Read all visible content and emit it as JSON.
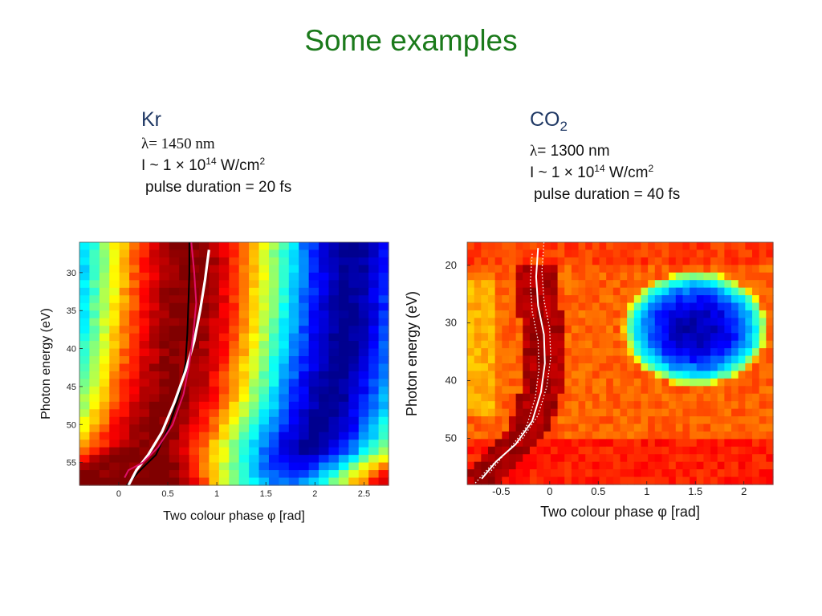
{
  "slide": {
    "title": "Some examples"
  },
  "kr": {
    "heading": "Kr",
    "lambda_symbol": "λ",
    "lambda_value": "= 1450 nm",
    "intensity_prefix": "I ~ 1 × 10",
    "intensity_exp": "14",
    "intensity_unit": " W/cm",
    "intensity_unit_exp": "2",
    "pulse": "pulse duration = 20 fs"
  },
  "co2": {
    "heading": "CO",
    "heading_sub": "2",
    "lambda_symbol": "λ",
    "lambda_value": "= 1300 nm",
    "intensity_prefix": "I ~ 1 × 10",
    "intensity_exp": "14",
    "intensity_unit": " W/cm",
    "intensity_unit_exp": "2",
    "pulse": "pulse duration = 40 fs"
  },
  "chart_data": [
    {
      "type": "heatmap",
      "xlabel": "Two colour phase φ [rad]",
      "ylabel": "Photon energy (eV)",
      "xlim": [
        -0.4,
        2.75
      ],
      "ylim": [
        26,
        58
      ],
      "y_inverted": true,
      "x_ticks": [
        0,
        0.5,
        1,
        1.5,
        2,
        2.5
      ],
      "x_tick_labels": [
        "0",
        "0.5",
        "1",
        "1.5",
        "2",
        "2.5"
      ],
      "y_ticks": [
        30,
        35,
        40,
        45,
        50,
        55
      ],
      "y_tick_labels": [
        "30",
        "35",
        "40",
        "45",
        "50",
        "55"
      ],
      "colormap": "jet",
      "colormap_colors": [
        "#00008f",
        "#0000ff",
        "#0080ff",
        "#00ffff",
        "#80ff80",
        "#ffff00",
        "#ff8000",
        "#ff0000",
        "#800000"
      ],
      "overlay_curves": [
        {
          "color": "#000000",
          "x": [
            0.72,
            0.72,
            0.71,
            0.7,
            0.68,
            0.62,
            0.52,
            0.38,
            0.22,
            0.08
          ],
          "y": [
            26,
            30,
            34,
            38,
            42,
            46,
            50,
            54,
            56,
            58
          ]
        },
        {
          "color": "#ffffff",
          "x": [
            0.92,
            0.88,
            0.83,
            0.77,
            0.68,
            0.57,
            0.44,
            0.3,
            0.18,
            0.1
          ],
          "y": [
            27,
            31,
            35,
            39,
            43,
            47,
            51,
            54,
            56,
            58
          ]
        },
        {
          "color": "#e0106a",
          "x": [
            0.74,
            0.77,
            0.79,
            0.76,
            0.72,
            0.66,
            0.55,
            0.4,
            0.25,
            0.1,
            0.06
          ],
          "y": [
            26,
            30,
            34,
            38,
            42,
            46,
            50,
            53,
            55,
            56,
            57
          ]
        }
      ]
    },
    {
      "type": "heatmap",
      "xlabel": "Two colour phase φ [rad]",
      "ylabel": "Photon energy (eV)",
      "xlim": [
        -0.85,
        2.3
      ],
      "ylim": [
        16,
        58
      ],
      "y_inverted": true,
      "x_ticks": [
        -0.5,
        0,
        0.5,
        1,
        1.5,
        2
      ],
      "x_tick_labels": [
        "-0.5",
        "0",
        "0.5",
        "1",
        "1.5",
        "2"
      ],
      "y_ticks": [
        20,
        30,
        40,
        50
      ],
      "y_tick_labels": [
        "20",
        "30",
        "40",
        "50"
      ],
      "colormap": "jet",
      "colormap_colors": [
        "#00008f",
        "#0000ff",
        "#0080ff",
        "#00ffff",
        "#80ff80",
        "#ffff00",
        "#ff8000",
        "#ff0000",
        "#800000"
      ],
      "overlay_curves": [
        {
          "color": "#ffffff",
          "style": "solid",
          "x": [
            -0.12,
            -0.14,
            -0.12,
            -0.06,
            -0.05,
            -0.09,
            -0.18,
            -0.35,
            -0.55,
            -0.7
          ],
          "y": [
            17,
            22,
            27,
            32,
            37,
            42,
            47,
            51,
            54,
            57
          ]
        },
        {
          "color": "#ffffff",
          "style": "dotted",
          "x": [
            -0.06,
            -0.08,
            -0.06,
            0.0,
            0.01,
            -0.03,
            -0.12,
            -0.28,
            -0.48,
            -0.62
          ],
          "y": [
            16,
            21,
            26,
            31,
            36,
            41,
            46,
            50,
            53,
            56
          ]
        },
        {
          "color": "#ffffff",
          "style": "dotted",
          "x": [
            -0.18,
            -0.2,
            -0.18,
            -0.12,
            -0.11,
            -0.15,
            -0.24,
            -0.42,
            -0.62,
            -0.78
          ],
          "y": [
            18,
            23,
            28,
            33,
            38,
            43,
            48,
            52,
            55,
            58
          ]
        }
      ]
    }
  ]
}
